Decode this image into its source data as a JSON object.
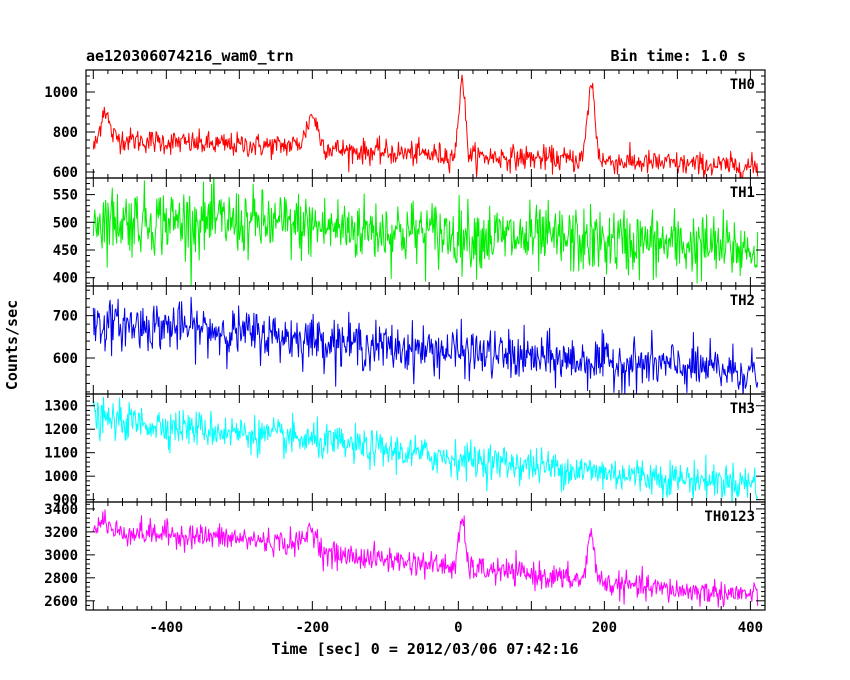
{
  "chart_data": {
    "type": "line",
    "title": "ae120306074216_wam0_trn",
    "bin_time": "Bin time: 1.0 s",
    "xlabel": "Time [sec] 0 = 2012/03/06 07:42:16",
    "ylabel": "Counts/sec",
    "xlim": [
      -510,
      420
    ],
    "x_ticks": [
      -400,
      -200,
      0,
      200,
      400
    ],
    "grid": false,
    "panels": [
      {
        "name": "TH0",
        "color": "#ff0000",
        "ylim": [
          570,
          1110
        ],
        "y_ticks": [
          600,
          800,
          1000
        ],
        "profile": [
          [
            -500,
            720
          ],
          [
            -480,
            780
          ],
          [
            -450,
            760
          ],
          [
            -350,
            740
          ],
          [
            -250,
            730
          ],
          [
            -210,
            740
          ],
          [
            -195,
            730
          ],
          [
            -150,
            705
          ],
          [
            -50,
            690
          ],
          [
            0,
            680
          ],
          [
            100,
            670
          ],
          [
            200,
            655
          ],
          [
            300,
            640
          ],
          [
            410,
            625
          ]
        ],
        "peaks": [
          [
            -485,
            150,
            5
          ],
          [
            -200,
            150,
            7
          ],
          [
            5,
            400,
            4
          ],
          [
            182,
            380,
            5
          ]
        ],
        "noise": 30
      },
      {
        "name": "TH1",
        "color": "#00ee00",
        "ylim": [
          385,
          580
        ],
        "y_ticks": [
          400,
          450,
          500,
          550
        ],
        "profile": [
          [
            -500,
            505
          ],
          [
            -300,
            500
          ],
          [
            -100,
            485
          ],
          [
            100,
            470
          ],
          [
            300,
            460
          ],
          [
            410,
            450
          ]
        ],
        "peaks": [],
        "noise": 30
      },
      {
        "name": "TH2",
        "color": "#0000ee",
        "ylim": [
          515,
          770
        ],
        "y_ticks": [
          600,
          700
        ],
        "profile": [
          [
            -500,
            680
          ],
          [
            -400,
            675
          ],
          [
            -300,
            660
          ],
          [
            -200,
            645
          ],
          [
            -100,
            625
          ],
          [
            0,
            615
          ],
          [
            100,
            600
          ],
          [
            200,
            590
          ],
          [
            300,
            580
          ],
          [
            410,
            565
          ]
        ],
        "peaks": [],
        "noise": 28
      },
      {
        "name": "TH3",
        "color": "#00ffff",
        "ylim": [
          890,
          1350
        ],
        "y_ticks": [
          900,
          1000,
          1100,
          1200,
          1300
        ],
        "profile": [
          [
            -500,
            1245
          ],
          [
            -400,
            1215
          ],
          [
            -300,
            1185
          ],
          [
            -200,
            1150
          ],
          [
            -100,
            1110
          ],
          [
            0,
            1075
          ],
          [
            100,
            1045
          ],
          [
            200,
            1015
          ],
          [
            300,
            990
          ],
          [
            410,
            970
          ]
        ],
        "peaks": [],
        "noise": 38
      },
      {
        "name": "TH0123",
        "color": "#ff00ff",
        "ylim": [
          2520,
          3460
        ],
        "y_ticks": [
          2600,
          2800,
          3000,
          3200,
          3400
        ],
        "profile": [
          [
            -500,
            3210
          ],
          [
            -400,
            3180
          ],
          [
            -300,
            3140
          ],
          [
            -210,
            3090
          ],
          [
            -190,
            3010
          ],
          [
            -100,
            2960
          ],
          [
            0,
            2890
          ],
          [
            100,
            2830
          ],
          [
            200,
            2750
          ],
          [
            300,
            2690
          ],
          [
            410,
            2650
          ]
        ],
        "peaks": [
          [
            -485,
            110,
            5
          ],
          [
            -200,
            180,
            7
          ],
          [
            5,
            420,
            4
          ],
          [
            182,
            400,
            5
          ]
        ],
        "noise": 55
      }
    ]
  }
}
